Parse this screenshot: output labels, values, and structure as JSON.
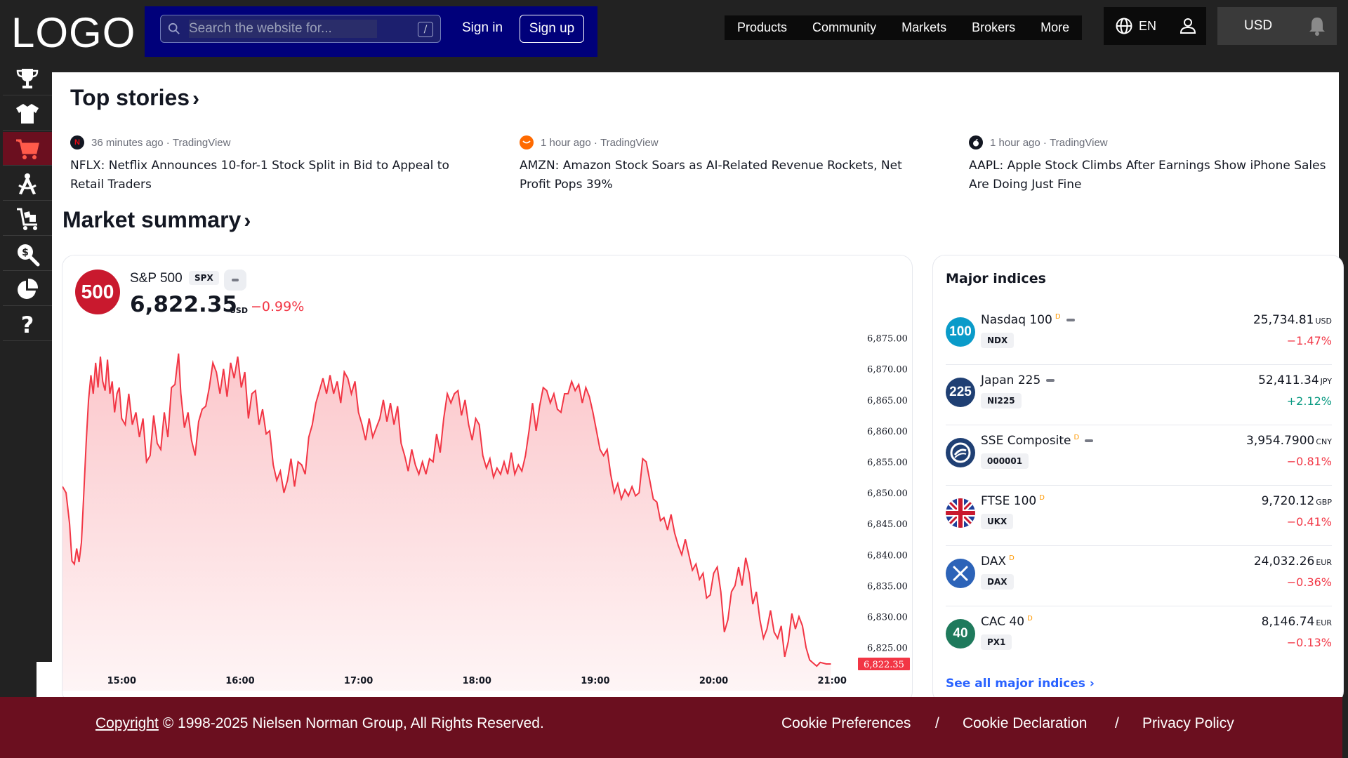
{
  "header": {
    "logo": "LOGO",
    "search_placeholder": "Search the website for...",
    "search_shortcut": "/",
    "signin_label": "Sign in",
    "signup_label": "Sign up",
    "nav": [
      "Products",
      "Community",
      "Markets",
      "Brokers",
      "More"
    ],
    "language": "EN",
    "currency": "USD"
  },
  "sidebar": {
    "icons": [
      "trophy-icon",
      "shirt-icon",
      "cart-icon",
      "compass-icon",
      "trolley-icon",
      "magnify-dollar-icon",
      "pie-chart-icon",
      "help-icon"
    ],
    "active_index": 2
  },
  "top_stories": {
    "title": "Top stories",
    "items": [
      {
        "time": "36 minutes ago",
        "source": "TradingView",
        "icon_letter": "N",
        "icon_color": "#e50914",
        "icon_bg": "#131722",
        "headline": "NFLX: Netflix Announces 10-for-1 Stock Split in Bid to Appeal to Retail Traders"
      },
      {
        "time": "1 hour ago",
        "source": "TradingView",
        "icon_letter": "",
        "icon_color": "#ff6a00",
        "icon_bg": "#ff6a00",
        "headline": "AMZN: Amazon Stock Soars as AI-Related Revenue Rockets, Net Profit Pops 39%"
      },
      {
        "time": "1 hour ago",
        "source": "TradingView",
        "icon_letter": "",
        "icon_color": "#131722",
        "icon_bg": "#131722",
        "headline": "AAPL: Apple Stock Climbs After Earnings Show iPhone Sales Are Doing Just Fine"
      }
    ]
  },
  "market_summary": {
    "title": "Market summary",
    "spx": {
      "badge": "500",
      "name": "S&P 500",
      "ticker": "SPX",
      "price": "6,822.35",
      "unit": "USD",
      "change": "−0.99%",
      "last_label": "6,822.35"
    }
  },
  "major_indices": {
    "title": "Major indices",
    "see_all": "See all major indices",
    "items": [
      {
        "badge": "100",
        "badge_color": "#0a9bc9",
        "name": "Nasdaq 100",
        "delayed": "D",
        "minus": true,
        "ticker": "NDX",
        "price": "25,734.81",
        "currency": "USD",
        "change": "−1.47%",
        "dir": "down"
      },
      {
        "badge": "225",
        "badge_color": "#1f3f73",
        "name": "Japan 225",
        "delayed": "",
        "minus": true,
        "ticker": "NI225",
        "price": "52,411.34",
        "currency": "JPY",
        "change": "+2.12%",
        "dir": "up"
      },
      {
        "badge": "",
        "badge_color": "#1f3f73",
        "name": "SSE Composite",
        "delayed": "D",
        "minus": true,
        "ticker": "000001",
        "price": "3,954.7900",
        "currency": "CNY",
        "change": "−0.81%",
        "dir": "down"
      },
      {
        "badge": "",
        "badge_color": "#ffffff",
        "name": "FTSE 100",
        "delayed": "D",
        "minus": false,
        "ticker": "UKX",
        "price": "9,720.12",
        "currency": "GBP",
        "change": "−0.41%",
        "dir": "down"
      },
      {
        "badge": "",
        "badge_color": "#2c63b8",
        "name": "DAX",
        "delayed": "D",
        "minus": false,
        "ticker": "DAX",
        "price": "24,032.26",
        "currency": "EUR",
        "change": "−0.36%",
        "dir": "down"
      },
      {
        "badge": "40",
        "badge_color": "#1f7a5c",
        "name": "CAC 40",
        "delayed": "D",
        "minus": false,
        "ticker": "PX1",
        "price": "8,146.74",
        "currency": "EUR",
        "change": "−0.13%",
        "dir": "down"
      }
    ]
  },
  "chart_data": {
    "type": "area",
    "title": "",
    "xlabel": "",
    "ylabel": "",
    "x_ticks": [
      "15:00",
      "16:00",
      "17:00",
      "18:00",
      "19:00",
      "20:00",
      "21:00"
    ],
    "y_ticks": [
      "6,875.00",
      "6,870.00",
      "6,865.00",
      "6,860.00",
      "6,855.00",
      "6,850.00",
      "6,845.00",
      "6,840.00",
      "6,835.00",
      "6,830.00",
      "6,825.00"
    ],
    "ylim": [
      6822.35,
      6877
    ],
    "x_range_hours": [
      14.5,
      21.07
    ],
    "color": "#f23645",
    "points": [
      [
        14.5,
        6851.0
      ],
      [
        14.53,
        6850.0
      ],
      [
        14.56,
        6845.0
      ],
      [
        14.58,
        6839.0
      ],
      [
        14.6,
        6838.5
      ],
      [
        14.62,
        6841.0
      ],
      [
        14.64,
        6838.8
      ],
      [
        14.66,
        6842.0
      ],
      [
        14.68,
        6850.0
      ],
      [
        14.7,
        6858.0
      ],
      [
        14.72,
        6865.0
      ],
      [
        14.74,
        6869.0
      ],
      [
        14.76,
        6866.0
      ],
      [
        14.78,
        6871.0
      ],
      [
        14.8,
        6867.0
      ],
      [
        14.82,
        6872.0
      ],
      [
        14.84,
        6868.0
      ],
      [
        14.86,
        6866.5
      ],
      [
        14.88,
        6871.5
      ],
      [
        14.9,
        6866.0
      ],
      [
        14.92,
        6868.0
      ],
      [
        14.94,
        6863.0
      ],
      [
        14.96,
        6866.0
      ],
      [
        14.98,
        6867.0
      ],
      [
        15.0,
        6862.0
      ],
      [
        15.03,
        6861.0
      ],
      [
        15.06,
        6866.0
      ],
      [
        15.09,
        6861.0
      ],
      [
        15.12,
        6863.0
      ],
      [
        15.15,
        6859.0
      ],
      [
        15.18,
        6862.0
      ],
      [
        15.21,
        6855.0
      ],
      [
        15.24,
        6856.0
      ],
      [
        15.27,
        6862.5
      ],
      [
        15.3,
        6858.0
      ],
      [
        15.33,
        6857.0
      ],
      [
        15.36,
        6863.0
      ],
      [
        15.39,
        6859.0
      ],
      [
        15.42,
        6867.0
      ],
      [
        15.45,
        6867.5
      ],
      [
        15.48,
        6872.5
      ],
      [
        15.5,
        6866.0
      ],
      [
        15.53,
        6860.5
      ],
      [
        15.56,
        6863.0
      ],
      [
        15.59,
        6858.5
      ],
      [
        15.62,
        6856.0
      ],
      [
        15.65,
        6861.5
      ],
      [
        15.68,
        6863.5
      ],
      [
        15.71,
        6864.0
      ],
      [
        15.74,
        6867.0
      ],
      [
        15.77,
        6871.0
      ],
      [
        15.8,
        6869.5
      ],
      [
        15.83,
        6866.0
      ],
      [
        15.86,
        6870.0
      ],
      [
        15.89,
        6865.5
      ],
      [
        15.92,
        6871.0
      ],
      [
        15.95,
        6868.5
      ],
      [
        15.98,
        6872.0
      ],
      [
        16.01,
        6867.0
      ],
      [
        16.04,
        6869.5
      ],
      [
        16.07,
        6862.0
      ],
      [
        16.1,
        6866.0
      ],
      [
        16.13,
        6866.5
      ],
      [
        16.16,
        6861.0
      ],
      [
        16.19,
        6863.5
      ],
      [
        16.22,
        6859.5
      ],
      [
        16.25,
        6860.0
      ],
      [
        16.28,
        6854.5
      ],
      [
        16.31,
        6852.0
      ],
      [
        16.34,
        6853.5
      ],
      [
        16.37,
        6850.0
      ],
      [
        16.4,
        6852.0
      ],
      [
        16.43,
        6855.5
      ],
      [
        16.46,
        6851.0
      ],
      [
        16.49,
        6855.0
      ],
      [
        16.52,
        6854.5
      ],
      [
        16.55,
        6853.0
      ],
      [
        16.58,
        6859.0
      ],
      [
        16.61,
        6861.0
      ],
      [
        16.64,
        6864.5
      ],
      [
        16.67,
        6866.5
      ],
      [
        16.7,
        6868.5
      ],
      [
        16.73,
        6866.0
      ],
      [
        16.76,
        6869.0
      ],
      [
        16.79,
        6866.0
      ],
      [
        16.82,
        6868.0
      ],
      [
        16.85,
        6864.5
      ],
      [
        16.88,
        6869.5
      ],
      [
        16.91,
        6868.5
      ],
      [
        16.94,
        6866.0
      ],
      [
        16.97,
        6868.0
      ],
      [
        17.0,
        6863.0
      ],
      [
        17.03,
        6861.0
      ],
      [
        17.06,
        6858.5
      ],
      [
        17.09,
        6862.0
      ],
      [
        17.12,
        6859.0
      ],
      [
        17.15,
        6860.5
      ],
      [
        17.18,
        6862.0
      ],
      [
        17.21,
        6865.0
      ],
      [
        17.24,
        6861.5
      ],
      [
        17.27,
        6864.5
      ],
      [
        17.3,
        6861.0
      ],
      [
        17.33,
        6864.0
      ],
      [
        17.36,
        6858.0
      ],
      [
        17.39,
        6856.0
      ],
      [
        17.42,
        6853.5
      ],
      [
        17.45,
        6857.0
      ],
      [
        17.48,
        6854.5
      ],
      [
        17.51,
        6853.0
      ],
      [
        17.54,
        6855.0
      ],
      [
        17.57,
        6853.0
      ],
      [
        17.6,
        6855.5
      ],
      [
        17.63,
        6855.0
      ],
      [
        17.66,
        6859.5
      ],
      [
        17.69,
        6856.5
      ],
      [
        17.72,
        6862.0
      ],
      [
        17.75,
        6866.0
      ],
      [
        17.78,
        6864.5
      ],
      [
        17.81,
        6866.0
      ],
      [
        17.84,
        6866.5
      ],
      [
        17.87,
        6862.5
      ],
      [
        17.9,
        6865.0
      ],
      [
        17.93,
        6861.0
      ],
      [
        17.96,
        6858.5
      ],
      [
        17.99,
        6862.0
      ],
      [
        18.02,
        6861.0
      ],
      [
        18.05,
        6856.0
      ],
      [
        18.08,
        6854.0
      ],
      [
        18.11,
        6855.5
      ],
      [
        18.14,
        6852.5
      ],
      [
        18.17,
        6854.0
      ],
      [
        18.2,
        6853.0
      ],
      [
        18.23,
        6855.0
      ],
      [
        18.26,
        6853.0
      ],
      [
        18.29,
        6856.5
      ],
      [
        18.32,
        6853.0
      ],
      [
        18.35,
        6854.5
      ],
      [
        18.38,
        6853.5
      ],
      [
        18.41,
        6856.0
      ],
      [
        18.44,
        6860.0
      ],
      [
        18.47,
        6864.5
      ],
      [
        18.5,
        6860.0
      ],
      [
        18.53,
        6864.0
      ],
      [
        18.56,
        6867.0
      ],
      [
        18.59,
        6866.5
      ],
      [
        18.62,
        6864.5
      ],
      [
        18.65,
        6866.0
      ],
      [
        18.68,
        6863.5
      ],
      [
        18.71,
        6863.0
      ],
      [
        18.74,
        6866.0
      ],
      [
        18.77,
        6866.0
      ],
      [
        18.8,
        6868.0
      ],
      [
        18.83,
        6866.5
      ],
      [
        18.86,
        6867.5
      ],
      [
        18.89,
        6864.5
      ],
      [
        18.92,
        6867.0
      ],
      [
        18.95,
        6865.5
      ],
      [
        18.98,
        6863.0
      ],
      [
        19.01,
        6860.0
      ],
      [
        19.04,
        6857.0
      ],
      [
        19.07,
        6856.0
      ],
      [
        19.1,
        6857.0
      ],
      [
        19.13,
        6853.0
      ],
      [
        19.16,
        6850.0
      ],
      [
        19.19,
        6851.5
      ],
      [
        19.22,
        6849.0
      ],
      [
        19.25,
        6850.5
      ],
      [
        19.28,
        6849.5
      ],
      [
        19.31,
        6851.0
      ],
      [
        19.34,
        6849.5
      ],
      [
        19.37,
        6850.0
      ],
      [
        19.4,
        6855.5
      ],
      [
        19.43,
        6855.0
      ],
      [
        19.46,
        6852.0
      ],
      [
        19.49,
        6849.0
      ],
      [
        19.52,
        6848.5
      ],
      [
        19.55,
        6845.5
      ],
      [
        19.58,
        6846.0
      ],
      [
        19.61,
        6844.0
      ],
      [
        19.64,
        6846.5
      ],
      [
        19.67,
        6843.5
      ],
      [
        19.7,
        6841.5
      ],
      [
        19.73,
        6840.0
      ],
      [
        19.76,
        6842.5
      ],
      [
        19.79,
        6840.0
      ],
      [
        19.82,
        6837.5
      ],
      [
        19.85,
        6838.5
      ],
      [
        19.88,
        6836.0
      ],
      [
        19.91,
        6837.0
      ],
      [
        19.94,
        6833.0
      ],
      [
        19.97,
        6833.5
      ],
      [
        20.0,
        6837.0
      ],
      [
        20.03,
        6838.0
      ],
      [
        20.06,
        6834.0
      ],
      [
        20.09,
        6827.5
      ],
      [
        20.12,
        6829.5
      ],
      [
        20.15,
        6834.0
      ],
      [
        20.18,
        6835.0
      ],
      [
        20.21,
        6838.0
      ],
      [
        20.24,
        6835.0
      ],
      [
        20.27,
        6839.5
      ],
      [
        20.3,
        6837.0
      ],
      [
        20.33,
        6832.0
      ],
      [
        20.36,
        6834.0
      ],
      [
        20.39,
        6829.5
      ],
      [
        20.42,
        6826.5
      ],
      [
        20.45,
        6828.0
      ],
      [
        20.48,
        6831.0
      ],
      [
        20.51,
        6827.5
      ],
      [
        20.54,
        6826.5
      ],
      [
        20.57,
        6828.5
      ],
      [
        20.6,
        6823.5
      ],
      [
        20.63,
        6826.0
      ],
      [
        20.66,
        6830.5
      ],
      [
        20.69,
        6828.0
      ],
      [
        20.72,
        6830.0
      ],
      [
        20.75,
        6828.5
      ],
      [
        20.78,
        6825.0
      ],
      [
        20.81,
        6823.0
      ],
      [
        20.84,
        6822.5
      ],
      [
        20.87,
        6822.0
      ],
      [
        20.9,
        6822.6
      ],
      [
        20.95,
        6822.35
      ],
      [
        20.99,
        6822.35
      ]
    ]
  },
  "footer": {
    "copyright_link": "Copyright",
    "copyright_text": "© 1998-2025 Nielsen Norman Group, All Rights Reserved.",
    "links": [
      "Cookie Preferences",
      "Cookie Declaration",
      "Privacy Policy"
    ],
    "separator": "/"
  }
}
